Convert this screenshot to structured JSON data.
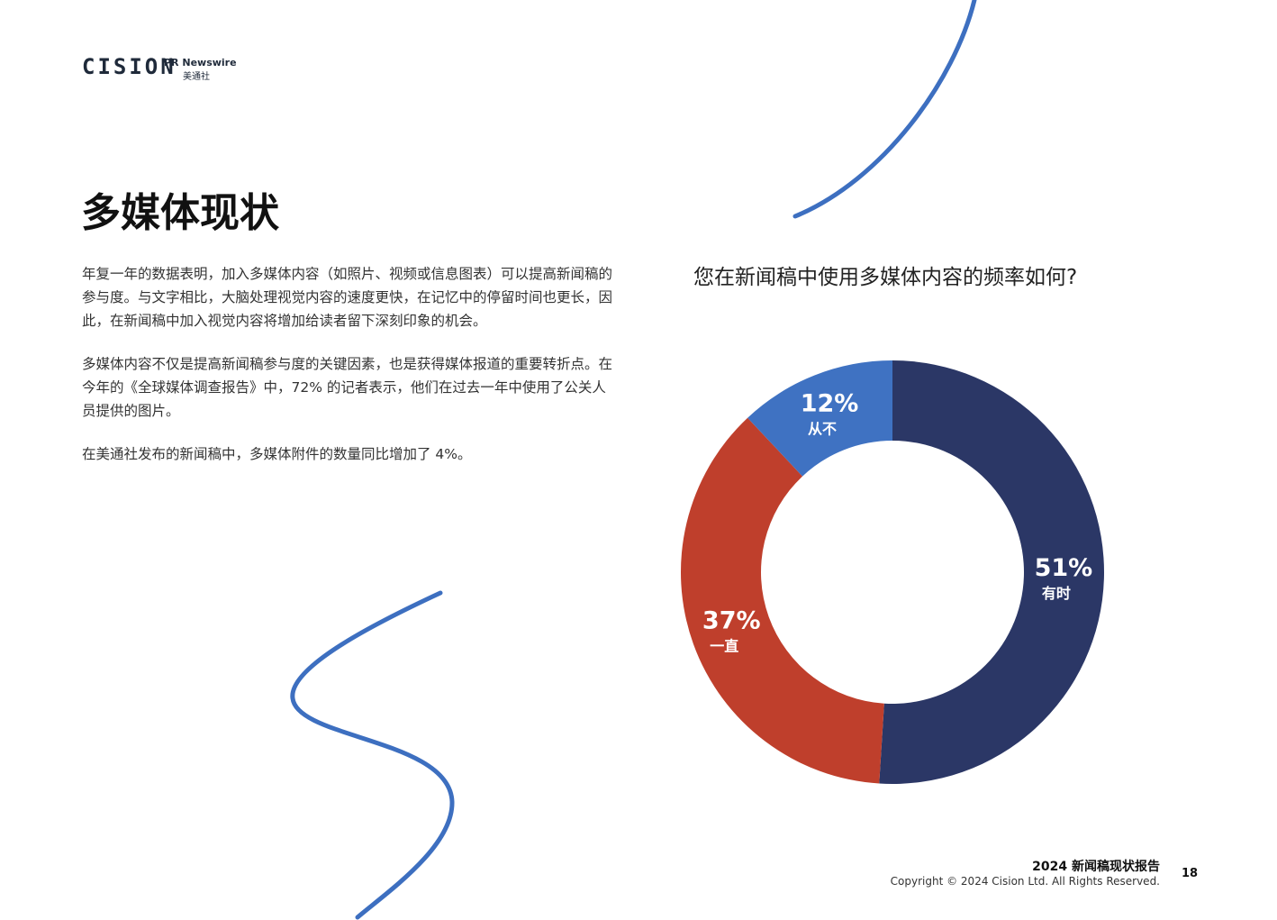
{
  "header": {
    "logo": "CISION",
    "brand": "PR Newswire",
    "brand_cn": "美通社"
  },
  "title": "多媒体现状",
  "paragraphs": [
    "年复一年的数据表明，加入多媒体内容（如照片、视频或信息图表）可以提高新闻稿的参与度。与文字相比，大脑处理视觉内容的速度更快，在记忆中的停留时间也更长，因此，在新闻稿中加入视觉内容将增加给读者留下深刻印象的机会。",
    "多媒体内容不仅是提高新闻稿参与度的关键因素，也是获得媒体报道的重要转折点。在今年的《全球媒体调查报告》中，72% 的记者表示，他们在过去一年中使用了公关人员提供的图片。",
    "在美通社发布的新闻稿中，多媒体附件的数量同比增加了 4%。"
  ],
  "chart_data": {
    "type": "donut",
    "title": "您在新闻稿中使用多媒体内容的频率如何?",
    "categories": [
      "有时",
      "一直",
      "从不"
    ],
    "values": [
      51,
      37,
      12
    ],
    "value_labels": [
      "51%",
      "37%",
      "12%"
    ],
    "colors": [
      "#2b3766",
      "#bf3f2c",
      "#3f72c2"
    ]
  },
  "footer": {
    "report": "2024 新闻稿现状报告",
    "copyright": "Copyright © 2024 Cision Ltd. All Rights Reserved.",
    "page": "18"
  }
}
